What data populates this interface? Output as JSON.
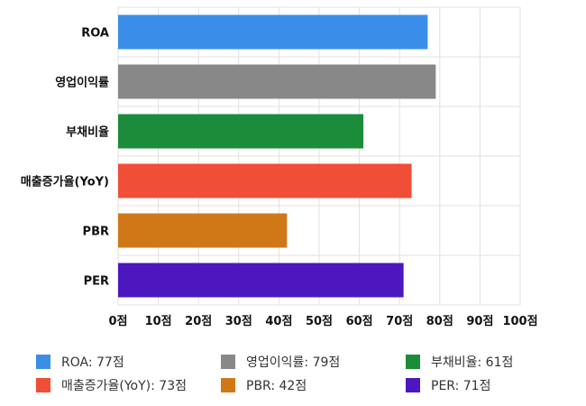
{
  "colors": {
    "grid": "#e0e0e0",
    "axis_text": "#111111",
    "legend_text": "#333333"
  },
  "chart_data": {
    "type": "bar",
    "orientation": "horizontal",
    "categories": [
      "ROA",
      "영업이익률",
      "부채비율",
      "매출증가율(YoY)",
      "PBR",
      "PER"
    ],
    "values": [
      77,
      79,
      61,
      73,
      42,
      71
    ],
    "colors": [
      "#3b8ee8",
      "#888888",
      "#1a8c3a",
      "#f04e37",
      "#d07818",
      "#4d17c0"
    ],
    "x_ticks": [
      "0점",
      "10점",
      "20점",
      "30점",
      "40점",
      "50점",
      "60점",
      "70점",
      "80점",
      "90점",
      "100점"
    ],
    "xlim": [
      0,
      100
    ],
    "grid": true,
    "legend_position": "bottom",
    "legend": [
      {
        "label": "ROA: 77점",
        "color": "#3b8ee8"
      },
      {
        "label": "영업이익률: 79점",
        "color": "#888888"
      },
      {
        "label": "부채비율: 61점",
        "color": "#1a8c3a"
      },
      {
        "label": "매출증가율(YoY): 73점",
        "color": "#f04e37"
      },
      {
        "label": "PBR: 42점",
        "color": "#d07818"
      },
      {
        "label": "PER: 71점",
        "color": "#4d17c0"
      }
    ]
  }
}
